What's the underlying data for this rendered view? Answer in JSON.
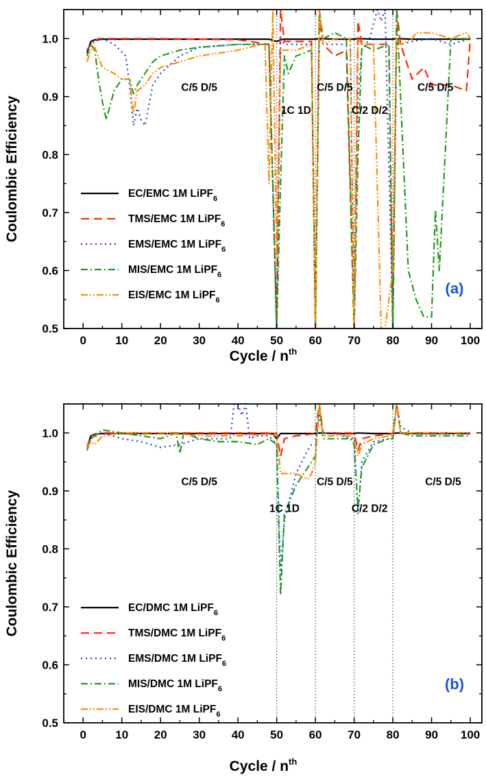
{
  "chart_data": [
    {
      "type": "line",
      "panel_label": "(a)",
      "xlabel": "Cycle / n",
      "xlabel_sup": "th",
      "ylabel": "Coulombic Efficiency",
      "xlim": [
        -5,
        103
      ],
      "ylim": [
        0.5,
        1.05
      ],
      "xticks": [
        0,
        10,
        20,
        30,
        40,
        50,
        60,
        70,
        80,
        90,
        100
      ],
      "yticks": [
        0.5,
        0.6,
        0.7,
        0.8,
        0.9,
        1.0
      ],
      "ytick_labels": [
        "0.5",
        "0.6",
        "0.7",
        "0.8",
        "0.9",
        "1.0"
      ],
      "vlines": [
        50,
        60,
        70,
        80
      ],
      "annotations": [
        {
          "text": "C/5 D/5",
          "x": 30,
          "y": 0.91
        },
        {
          "text": "1C 1D",
          "x": 55,
          "y": 0.87
        },
        {
          "text": "C/5 D/5",
          "x": 65,
          "y": 0.91
        },
        {
          "text": "C/2 D/2",
          "x": 74,
          "y": 0.87
        },
        {
          "text": "C/5 D/5",
          "x": 91,
          "y": 0.91
        }
      ],
      "legend": {
        "position": "lower-left"
      },
      "series": [
        {
          "name": "EC/EMC 1M LiPF",
          "sub": "6",
          "color": "#000000",
          "dash": "solid",
          "x": [
            1,
            2,
            3,
            5,
            10,
            20,
            30,
            40,
            48,
            50,
            51,
            52,
            55,
            60,
            61,
            65,
            70,
            71,
            75,
            80,
            81,
            85,
            90,
            95,
            100
          ],
          "y": [
            0.975,
            0.995,
            0.998,
            0.999,
            0.999,
            0.999,
            0.999,
            0.999,
            0.999,
            0.995,
            0.998,
            0.999,
            0.999,
            0.999,
            1.0,
            0.999,
            0.999,
            1.0,
            0.999,
            0.999,
            1.0,
            0.999,
            0.999,
            0.999,
            0.999
          ]
        },
        {
          "name": "TMS/EMC 1M LiPF",
          "sub": "6",
          "color": "#ff2a00",
          "dash": "dash",
          "x": [
            1,
            2,
            4,
            10,
            20,
            30,
            40,
            48,
            49,
            50,
            51,
            52,
            55,
            59,
            60,
            61,
            62,
            65,
            68,
            70,
            71,
            72,
            75,
            79,
            80,
            81,
            82,
            85,
            88,
            90,
            95,
            99,
            100
          ],
          "y": [
            0.98,
            0.99,
            1.0,
            1.0,
            1.0,
            0.999,
            0.998,
            0.99,
            0.75,
            0.5,
            1.05,
            0.995,
            0.995,
            0.995,
            0.5,
            1.03,
            0.99,
            0.97,
            0.98,
            0.5,
            1.03,
            0.99,
            0.99,
            0.99,
            0.5,
            1.05,
            0.99,
            0.93,
            0.95,
            0.92,
            0.92,
            0.91,
            1.0
          ]
        },
        {
          "name": "EMS/EMC 1M LiPF",
          "sub": "6",
          "color": "#1a3ae0",
          "dash": "dot",
          "x": [
            1,
            2,
            3,
            5,
            8,
            11,
            12,
            13,
            14,
            15,
            16,
            18,
            20,
            25,
            30,
            40,
            48,
            50,
            51,
            52,
            55,
            59,
            60,
            61,
            62,
            65,
            69,
            70,
            71,
            72,
            74,
            76,
            77,
            78,
            80,
            81,
            82,
            85,
            90,
            95,
            100
          ],
          "y": [
            0.98,
            0.99,
            0.995,
            1.0,
            0.99,
            0.97,
            0.92,
            0.85,
            0.88,
            0.86,
            0.85,
            0.92,
            0.94,
            0.97,
            0.985,
            0.99,
            0.99,
            0.5,
            1.0,
            0.99,
            0.99,
            0.99,
            0.5,
            1.0,
            0.99,
            0.99,
            0.99,
            0.5,
            0.9,
            0.98,
            1.0,
            1.05,
            1.03,
            1.05,
            0.5,
            1.0,
            0.99,
            0.995,
            1.0,
            0.99,
            1.0
          ]
        },
        {
          "name": "MIS/EMC 1M LiPF",
          "sub": "6",
          "color": "#1f9c1f",
          "dash": "dashdot",
          "x": [
            1,
            2,
            3,
            4,
            5,
            6,
            8,
            10,
            12,
            13,
            14,
            16,
            18,
            20,
            25,
            30,
            40,
            48,
            50,
            51,
            52,
            53,
            55,
            59,
            60,
            61,
            62,
            65,
            68,
            70,
            71,
            72,
            75,
            79,
            80,
            81,
            82,
            83,
            84,
            86,
            88,
            90,
            91,
            92,
            95,
            100
          ],
          "y": [
            0.97,
            0.99,
            0.98,
            0.93,
            0.89,
            0.86,
            0.91,
            0.93,
            0.93,
            0.905,
            0.92,
            0.94,
            0.96,
            0.97,
            0.98,
            0.985,
            0.99,
            0.99,
            0.5,
            0.75,
            0.97,
            0.94,
            0.97,
            0.98,
            0.5,
            1.05,
            1.0,
            1.01,
            1.0,
            0.5,
            0.8,
            0.99,
            0.98,
            0.99,
            0.5,
            1.05,
            0.9,
            0.75,
            0.6,
            0.55,
            0.52,
            0.52,
            0.705,
            0.6,
            1.0,
            1.0
          ]
        },
        {
          "name": "EIS/EMC 1M LiPF",
          "sub": "6",
          "color": "#ff8c00",
          "dash": "dashdotdot",
          "x": [
            1,
            2,
            3,
            5,
            8,
            10,
            12,
            13,
            14,
            16,
            18,
            20,
            25,
            30,
            40,
            46,
            47,
            48,
            49,
            50,
            51,
            52,
            55,
            59,
            60,
            61,
            62,
            65,
            69,
            70,
            71,
            72,
            75,
            77,
            78,
            79,
            80,
            81,
            82,
            85,
            86,
            88,
            90,
            95,
            99,
            100
          ],
          "y": [
            0.96,
            0.98,
            0.985,
            0.95,
            0.94,
            0.93,
            0.93,
            0.87,
            0.91,
            0.92,
            0.94,
            0.95,
            0.96,
            0.97,
            0.98,
            0.99,
            0.99,
            0.75,
            1.05,
            0.62,
            0.98,
            0.98,
            0.98,
            0.99,
            0.5,
            1.05,
            0.99,
            1.0,
            1.0,
            0.5,
            1.0,
            0.99,
            0.99,
            0.5,
            0.5,
            0.55,
            0.6,
            1.0,
            0.99,
            1.0,
            1.01,
            1.01,
            1.01,
            1.0,
            1.01,
            1.0
          ]
        }
      ]
    },
    {
      "type": "line",
      "panel_label": "(b)",
      "xlabel": "Cycle / n",
      "xlabel_sup": "th",
      "ylabel": "Coulombic Efficiency",
      "xlim": [
        -5,
        103
      ],
      "ylim": [
        0.5,
        1.05
      ],
      "xticks": [
        0,
        10,
        20,
        30,
        40,
        50,
        60,
        70,
        80,
        90,
        100
      ],
      "yticks": [
        0.5,
        0.6,
        0.7,
        0.8,
        0.9,
        1.0
      ],
      "ytick_labels": [
        "0.5",
        "0.6",
        "0.7",
        "0.8",
        "0.9",
        "1.0"
      ],
      "vlines": [
        50,
        60,
        70,
        80
      ],
      "annotations": [
        {
          "text": "C/5 D/5",
          "x": 30,
          "y": 0.91
        },
        {
          "text": "1C 1D",
          "x": 52,
          "y": 0.864
        },
        {
          "text": "C/5 D/5",
          "x": 65,
          "y": 0.91
        },
        {
          "text": "C/2 D/2",
          "x": 74,
          "y": 0.864
        },
        {
          "text": "C/5 D/5",
          "x": 93,
          "y": 0.91
        }
      ],
      "legend": {
        "position": "lower-left"
      },
      "series": [
        {
          "name": "EC/DMC 1M LiPF",
          "sub": "6",
          "color": "#000000",
          "dash": "solid",
          "x": [
            1,
            2,
            3,
            5,
            10,
            20,
            30,
            40,
            49,
            50,
            51,
            52,
            55,
            60,
            61,
            65,
            70,
            71,
            75,
            80,
            81,
            85,
            90,
            95,
            100
          ],
          "y": [
            0.975,
            0.995,
            0.998,
            0.999,
            0.999,
            0.999,
            0.999,
            0.999,
            0.999,
            0.99,
            0.999,
            0.999,
            0.999,
            0.999,
            1.0,
            0.999,
            0.999,
            1.0,
            0.999,
            0.999,
            1.0,
            0.999,
            0.999,
            0.999,
            0.999
          ]
        },
        {
          "name": "TMS/DMC 1M LiPF",
          "sub": "6",
          "color": "#ff2a00",
          "dash": "dash",
          "x": [
            1,
            2,
            5,
            10,
            20,
            30,
            40,
            48,
            50,
            51,
            52,
            55,
            59,
            60,
            61,
            62,
            65,
            69,
            70,
            71,
            72,
            75,
            79,
            80,
            81,
            82,
            85,
            90,
            95,
            100
          ],
          "y": [
            0.975,
            0.995,
            1.0,
            1.0,
            1.0,
            1.0,
            1.0,
            1.0,
            0.999,
            0.96,
            0.99,
            0.995,
            0.998,
            0.999,
            1.05,
            1.0,
            1.0,
            1.0,
            0.999,
            0.97,
            0.99,
            0.995,
            0.998,
            0.999,
            1.05,
            1.0,
            1.0,
            1.0,
            1.0,
            1.0
          ]
        },
        {
          "name": "EMS/DMC 1M LiPF",
          "sub": "6",
          "color": "#1a3ae0",
          "dash": "dot",
          "x": [
            1,
            2,
            5,
            10,
            15,
            20,
            25,
            30,
            35,
            38,
            39,
            40,
            41,
            42,
            43,
            45,
            48,
            50,
            51,
            52,
            55,
            58,
            59,
            60,
            61,
            62,
            65,
            69,
            70,
            71,
            72,
            75,
            79,
            80,
            81,
            82,
            85,
            90,
            95,
            100
          ],
          "y": [
            0.975,
            0.99,
            1.0,
            0.99,
            0.985,
            0.975,
            0.98,
            0.99,
            0.99,
            0.99,
            1.05,
            1.05,
            1.03,
            1.05,
            0.99,
            0.995,
            0.995,
            0.98,
            0.76,
            0.85,
            0.93,
            0.97,
            0.98,
            0.98,
            1.03,
            1.0,
            1.0,
            0.99,
            0.99,
            0.86,
            0.95,
            0.985,
            0.99,
            0.99,
            1.05,
            1.01,
            1.0,
            1.0,
            1.0,
            1.0
          ]
        },
        {
          "name": "MIS/DMC 1M LiPF",
          "sub": "6",
          "color": "#1f9c1f",
          "dash": "dashdot",
          "x": [
            1,
            2,
            5,
            10,
            15,
            20,
            24,
            25,
            26,
            30,
            35,
            40,
            45,
            48,
            50,
            51,
            52,
            55,
            58,
            59,
            60,
            61,
            62,
            65,
            69,
            70,
            71,
            72,
            75,
            79,
            80,
            81,
            82,
            85,
            90,
            95,
            100
          ],
          "y": [
            0.97,
            0.99,
            1.005,
            1.0,
            0.995,
            0.99,
            1.0,
            0.965,
            1.0,
            0.99,
            0.985,
            0.985,
            0.98,
            0.99,
            0.98,
            0.72,
            0.86,
            0.91,
            0.94,
            0.95,
            0.96,
            1.05,
            0.99,
            0.99,
            0.99,
            0.98,
            0.87,
            0.94,
            0.98,
            0.99,
            0.99,
            1.05,
            1.0,
            0.995,
            0.995,
            0.995,
            0.995
          ]
        },
        {
          "name": "EIS/DMC 1M LiPF",
          "sub": "6",
          "color": "#ff8c00",
          "dash": "dashdotdot",
          "x": [
            1,
            2,
            3,
            5,
            10,
            20,
            30,
            40,
            48,
            50,
            51,
            52,
            55,
            58,
            59,
            60,
            61,
            62,
            65,
            69,
            70,
            71,
            72,
            75,
            79,
            80,
            81,
            82,
            85,
            90,
            95,
            100
          ],
          "y": [
            0.975,
            0.985,
            0.98,
            0.995,
            1.0,
            1.0,
            0.995,
            0.995,
            0.998,
            0.995,
            0.93,
            0.93,
            0.93,
            0.92,
            0.93,
            0.95,
            1.05,
            0.995,
            0.995,
            0.995,
            0.99,
            0.96,
            0.98,
            0.99,
            0.995,
            0.995,
            1.05,
            1.0,
            1.0,
            1.0,
            1.0,
            1.0
          ]
        }
      ]
    }
  ]
}
